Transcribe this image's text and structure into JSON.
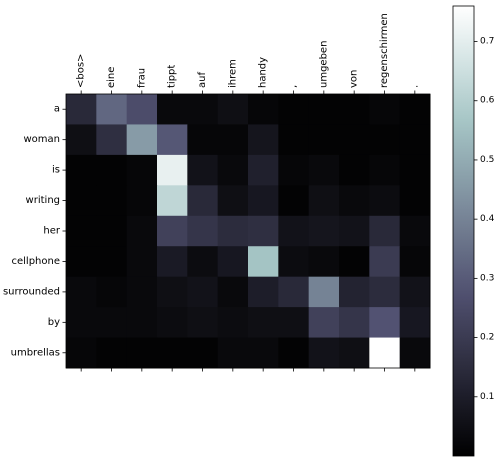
{
  "chart_data": {
    "type": "heatmap",
    "title": "",
    "xlabel": "",
    "ylabel": "",
    "x_labels": [
      "<bos>",
      "eine",
      "frau",
      "tippt",
      "auf",
      "ihrem",
      "handy",
      ",",
      "umgeben",
      "von",
      "regenschirmen",
      "."
    ],
    "y_labels": [
      "a",
      "woman",
      "is",
      "writing",
      "her",
      "cellphone",
      "surrounded",
      "by",
      "umbrellas"
    ],
    "values": [
      [
        0.14,
        0.33,
        0.26,
        0.03,
        0.03,
        0.05,
        0.02,
        0.01,
        0.01,
        0.01,
        0.02,
        0.01
      ],
      [
        0.05,
        0.16,
        0.46,
        0.29,
        0.02,
        0.02,
        0.07,
        0.01,
        0.01,
        0.01,
        0.01,
        0.01
      ],
      [
        0.01,
        0.01,
        0.02,
        0.71,
        0.06,
        0.03,
        0.11,
        0.02,
        0.03,
        0.01,
        0.02,
        0.01
      ],
      [
        0.01,
        0.01,
        0.02,
        0.62,
        0.14,
        0.05,
        0.08,
        0.01,
        0.05,
        0.03,
        0.04,
        0.01
      ],
      [
        0.01,
        0.01,
        0.03,
        0.22,
        0.18,
        0.15,
        0.16,
        0.06,
        0.07,
        0.06,
        0.14,
        0.03
      ],
      [
        0.01,
        0.01,
        0.03,
        0.09,
        0.04,
        0.08,
        0.56,
        0.04,
        0.03,
        0.01,
        0.2,
        0.02
      ],
      [
        0.03,
        0.02,
        0.03,
        0.05,
        0.06,
        0.03,
        0.1,
        0.14,
        0.4,
        0.12,
        0.15,
        0.06
      ],
      [
        0.03,
        0.03,
        0.03,
        0.04,
        0.05,
        0.04,
        0.05,
        0.05,
        0.22,
        0.18,
        0.28,
        0.08
      ],
      [
        0.02,
        0.01,
        0.01,
        0.01,
        0.01,
        0.03,
        0.03,
        0.01,
        0.06,
        0.05,
        0.76,
        0.03
      ]
    ],
    "colormap": "bone",
    "colorbar": {
      "min": 0.0,
      "max": 0.76,
      "ticks": [
        "0.1",
        "0.2",
        "0.3",
        "0.4",
        "0.5",
        "0.6",
        "0.7"
      ]
    },
    "grid": false
  }
}
